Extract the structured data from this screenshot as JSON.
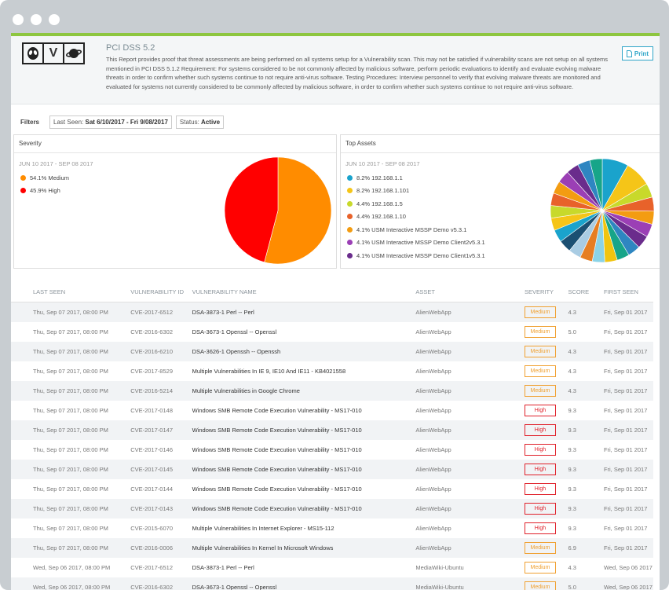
{
  "report": {
    "title": "PCI DSS 5.2",
    "description": "This Report provides proof that threat assessments are being performed on all systems setup for a Vulnerability scan. This may not be satisfied if vulnerability scans are not setup on all systems mentioned in PCI DSS 5.1.2 Requirement: For systems considered to be not commonly affected by malicious software, perform periodic evaluations to identify and evaluate evolving malware threats in order to confirm whether such systems continue to not require anti-virus software. Testing Procedures: Interview personnel to verify that evolving malware threats are monitored and evaluated for systems not currently considered to be commonly affected by malicious software, in order to confirm whether such systems continue to not require anti-virus software.",
    "print_label": "Print",
    "logo_letters": [
      "",
      "V",
      ""
    ]
  },
  "filters": {
    "label": "Filters",
    "last_seen_key": "Last Seen:",
    "last_seen_value": "Sat 6/10/2017 - Fri 9/08/2017",
    "status_key": "Status:",
    "status_value": "Active"
  },
  "severity_panel": {
    "title": "Severity",
    "range": "JUN 10 2017 - SEP 08 2017",
    "legend": [
      {
        "label": "54.1% Medium",
        "color": "#ff8c00"
      },
      {
        "label": "45.9% High",
        "color": "#ff0000"
      }
    ]
  },
  "assets_panel": {
    "title": "Top Assets",
    "range": "JUN 10 2017 - SEP 08 2017",
    "legend": [
      {
        "label": "8.2% 192.168.1.1",
        "color": "#1aa3cc"
      },
      {
        "label": "8.2% 192.168.1.101",
        "color": "#f5c518"
      },
      {
        "label": "4.4% 192.168.1.5",
        "color": "#c8d92b"
      },
      {
        "label": "4.4% 192.168.1.10",
        "color": "#e8622a"
      },
      {
        "label": "4.1% USM Interactive MSSP Demo v5.3.1",
        "color": "#f39c12"
      },
      {
        "label": "4.1% USM Interactive MSSP Demo Client2v5.3.1",
        "color": "#9b3fb5"
      },
      {
        "label": "4.1% USM Interactive MSSP Demo Client1v5.3.1",
        "color": "#6a2c8c"
      }
    ]
  },
  "chart_data": [
    {
      "type": "pie",
      "title": "Severity",
      "categories": [
        "Medium",
        "High"
      ],
      "values": [
        54.1,
        45.9
      ],
      "colors": [
        "#ff8c00",
        "#ff0000"
      ]
    },
    {
      "type": "pie",
      "title": "Top Assets",
      "categories": [
        "192.168.1.1",
        "192.168.1.101",
        "192.168.1.5",
        "192.168.1.10",
        "USM Interactive MSSP Demo v5.3.1",
        "USM Interactive MSSP Demo Client2v5.3.1",
        "USM Interactive MSSP Demo Client1v5.3.1"
      ],
      "values": [
        8.2,
        8.2,
        4.4,
        4.4,
        4.1,
        4.1,
        4.1
      ],
      "colors": [
        "#1aa3cc",
        "#f5c518",
        "#c8d92b",
        "#e8622a",
        "#f39c12",
        "#9b3fb5",
        "#6a2c8c"
      ]
    }
  ],
  "table": {
    "headers": [
      "LAST SEEN",
      "VULNERABILITY ID",
      "VULNERABILITY NAME",
      "ASSET",
      "SEVERITY",
      "SCORE",
      "FIRST SEEN"
    ],
    "rows": [
      {
        "last_seen": "Thu, Sep 07 2017, 08:00 PM",
        "id": "CVE-2017-6512",
        "name": "DSA-3873-1 Perl -- Perl",
        "asset": "AlienWebApp",
        "severity": "Medium",
        "score": "4.3",
        "first_seen": "Fri, Sep 01 2017"
      },
      {
        "last_seen": "Thu, Sep 07 2017, 08:00 PM",
        "id": "CVE-2016-6302",
        "name": "DSA-3673-1 Openssl -- Openssl",
        "asset": "AlienWebApp",
        "severity": "Medium",
        "score": "5.0",
        "first_seen": "Fri, Sep 01 2017"
      },
      {
        "last_seen": "Thu, Sep 07 2017, 08:00 PM",
        "id": "CVE-2016-6210",
        "name": "DSA-3626-1 Openssh -- Openssh",
        "asset": "AlienWebApp",
        "severity": "Medium",
        "score": "4.3",
        "first_seen": "Fri, Sep 01 2017"
      },
      {
        "last_seen": "Thu, Sep 07 2017, 08:00 PM",
        "id": "CVE-2017-8529",
        "name": "Multiple Vulnerabilities In IE 9, IE10 And IE11 - KB4021558",
        "asset": "AlienWebApp",
        "severity": "Medium",
        "score": "4.3",
        "first_seen": "Fri, Sep 01 2017"
      },
      {
        "last_seen": "Thu, Sep 07 2017, 08:00 PM",
        "id": "CVE-2016-5214",
        "name": "Multiple Vulnerabilities in Google Chrome",
        "asset": "AlienWebApp",
        "severity": "Medium",
        "score": "4.3",
        "first_seen": "Fri, Sep 01 2017"
      },
      {
        "last_seen": "Thu, Sep 07 2017, 08:00 PM",
        "id": "CVE-2017-0148",
        "name": "Windows SMB Remote Code Execution Vulnerability - MS17-010",
        "asset": "AlienWebApp",
        "severity": "High",
        "score": "9.3",
        "first_seen": "Fri, Sep 01 2017"
      },
      {
        "last_seen": "Thu, Sep 07 2017, 08:00 PM",
        "id": "CVE-2017-0147",
        "name": "Windows SMB Remote Code Execution Vulnerability - MS17-010",
        "asset": "AlienWebApp",
        "severity": "High",
        "score": "9.3",
        "first_seen": "Fri, Sep 01 2017"
      },
      {
        "last_seen": "Thu, Sep 07 2017, 08:00 PM",
        "id": "CVE-2017-0146",
        "name": "Windows SMB Remote Code Execution Vulnerability - MS17-010",
        "asset": "AlienWebApp",
        "severity": "High",
        "score": "9.3",
        "first_seen": "Fri, Sep 01 2017"
      },
      {
        "last_seen": "Thu, Sep 07 2017, 08:00 PM",
        "id": "CVE-2017-0145",
        "name": "Windows SMB Remote Code Execution Vulnerability - MS17-010",
        "asset": "AlienWebApp",
        "severity": "High",
        "score": "9.3",
        "first_seen": "Fri, Sep 01 2017"
      },
      {
        "last_seen": "Thu, Sep 07 2017, 08:00 PM",
        "id": "CVE-2017-0144",
        "name": "Windows SMB Remote Code Execution Vulnerability - MS17-010",
        "asset": "AlienWebApp",
        "severity": "High",
        "score": "9.3",
        "first_seen": "Fri, Sep 01 2017"
      },
      {
        "last_seen": "Thu, Sep 07 2017, 08:00 PM",
        "id": "CVE-2017-0143",
        "name": "Windows SMB Remote Code Execution Vulnerability - MS17-010",
        "asset": "AlienWebApp",
        "severity": "High",
        "score": "9.3",
        "first_seen": "Fri, Sep 01 2017"
      },
      {
        "last_seen": "Thu, Sep 07 2017, 08:00 PM",
        "id": "CVE-2015-6070",
        "name": "Multiple Vulnerabilities In Internet Explorer - MS15-112",
        "asset": "AlienWebApp",
        "severity": "High",
        "score": "9.3",
        "first_seen": "Fri, Sep 01 2017"
      },
      {
        "last_seen": "Thu, Sep 07 2017, 08:00 PM",
        "id": "CVE-2016-0006",
        "name": "Multiple Vulnerabilities In Kernel In Microsoft Windows",
        "asset": "AlienWebApp",
        "severity": "Medium",
        "score": "6.9",
        "first_seen": "Fri, Sep 01 2017"
      },
      {
        "last_seen": "Wed, Sep 06 2017, 08:00 PM",
        "id": "CVE-2017-6512",
        "name": "DSA-3873-1 Perl -- Perl",
        "asset": "MediaWiki-Ubuntu",
        "severity": "Medium",
        "score": "4.3",
        "first_seen": "Wed, Sep 06 2017"
      },
      {
        "last_seen": "Wed, Sep 06 2017, 08:00 PM",
        "id": "CVE-2016-6302",
        "name": "DSA-3673-1 Openssl -- Openssl",
        "asset": "MediaWiki-Ubuntu",
        "severity": "Medium",
        "score": "5.0",
        "first_seen": "Wed, Sep 06 2017"
      }
    ]
  }
}
